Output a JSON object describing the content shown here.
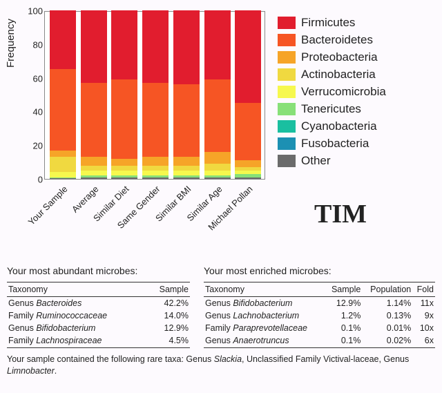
{
  "chart": {
    "type": "stacked-bar",
    "ylabel": "Frequency",
    "ylim": [
      0,
      100
    ],
    "yticks": [
      0,
      20,
      40,
      60,
      80,
      100
    ],
    "background_color": "#fdfafe",
    "categories": [
      "Your Sample",
      "Average",
      "Similar Diet",
      "Same Gender",
      "Similar BMI",
      "Similar Age",
      "Michael Pollan"
    ],
    "series": [
      {
        "name": "Firmicutes",
        "color": "#e11d2e"
      },
      {
        "name": "Bacteroidetes",
        "color": "#f65524"
      },
      {
        "name": "Proteobacteria",
        "color": "#f6a428"
      },
      {
        "name": "Actinobacteria",
        "color": "#f0d940"
      },
      {
        "name": "Verrucomicrobia",
        "color": "#f6f84e"
      },
      {
        "name": "Tenericutes",
        "color": "#88e078"
      },
      {
        "name": "Cyanobacteria",
        "color": "#1abfa0"
      },
      {
        "name": "Fusobacteria",
        "color": "#1c90b3"
      },
      {
        "name": "Other",
        "color": "#6b6b6b"
      }
    ],
    "data": [
      {
        "values": [
          35,
          48,
          4,
          9,
          3,
          0.5,
          0,
          0,
          0.5
        ]
      },
      {
        "values": [
          43,
          44,
          5,
          3,
          3,
          1,
          0,
          0,
          1
        ]
      },
      {
        "values": [
          41,
          47,
          4,
          3,
          3,
          1,
          0,
          0,
          1
        ]
      },
      {
        "values": [
          43,
          44,
          5,
          3,
          3,
          1,
          0,
          0,
          1
        ]
      },
      {
        "values": [
          44,
          43,
          5,
          3,
          3,
          1,
          0,
          0,
          1
        ]
      },
      {
        "values": [
          41,
          43,
          7,
          4,
          3,
          1,
          0,
          0,
          1
        ]
      },
      {
        "values": [
          55,
          34,
          4,
          2,
          2,
          2,
          0,
          0,
          1
        ]
      }
    ]
  },
  "name_label": "TIM",
  "abundant": {
    "title": "Your most abundant microbes:",
    "columns": [
      "Taxonomy",
      "Sample"
    ],
    "rows": [
      {
        "prefix": "Genus ",
        "name": "Bacteroides",
        "sample": "42.2%"
      },
      {
        "prefix": "Family ",
        "name": "Ruminococcaceae",
        "sample": "14.0%"
      },
      {
        "prefix": "Genus ",
        "name": "Bifidobacterium",
        "sample": "12.9%"
      },
      {
        "prefix": "Family ",
        "name": "Lachnospiraceae",
        "sample": "4.5%"
      }
    ]
  },
  "enriched": {
    "title": "Your most enriched microbes:",
    "columns": [
      "Taxonomy",
      "Sample",
      "Population",
      "Fold"
    ],
    "rows": [
      {
        "prefix": "Genus ",
        "name": "Bifidobacterium",
        "sample": "12.9%",
        "population": "1.14%",
        "fold": "11x"
      },
      {
        "prefix": "Genus ",
        "name": "Lachnobacterium",
        "sample": "1.2%",
        "population": "0.13%",
        "fold": "9x"
      },
      {
        "prefix": "Family ",
        "name": "Paraprevotellaceae",
        "sample": "0.1%",
        "population": "0.01%",
        "fold": "10x"
      },
      {
        "prefix": "Genus ",
        "name": "Anaerotruncus",
        "sample": "0.1%",
        "population": "0.02%",
        "fold": "6x"
      }
    ]
  },
  "rare": {
    "prefix": "Your sample contained the following rare taxa: Genus ",
    "t1": "Slackia",
    "mid1": ", Unclassified Family Victival-laceae, Genus ",
    "t2": "Limnobacter",
    "suffix": "."
  }
}
